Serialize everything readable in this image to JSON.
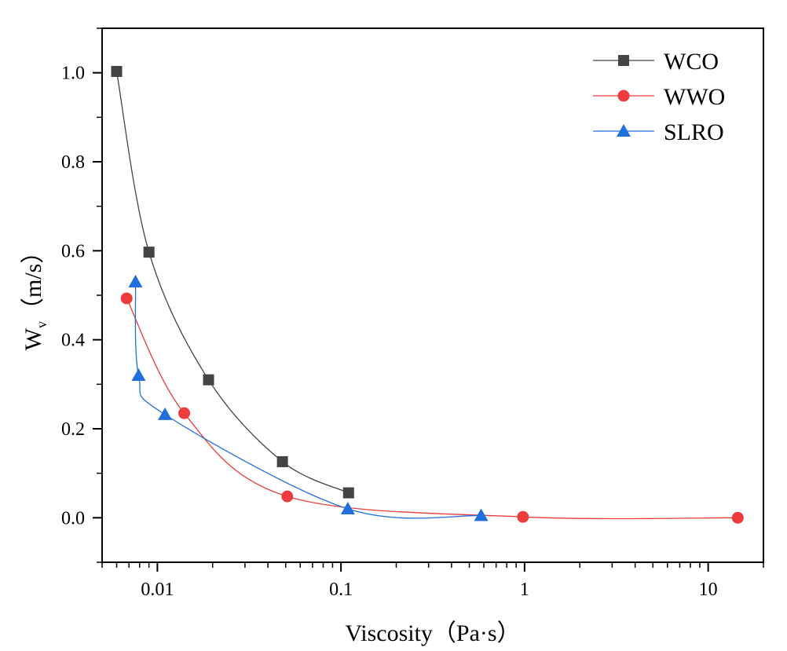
{
  "chart_data": {
    "type": "line",
    "xscale": "log",
    "xlabel": "Viscosity（Pa·s）",
    "ylabel": {
      "main": "W",
      "sub": "v",
      "unit": "（m/s）"
    },
    "xlim": [
      0.005,
      20
    ],
    "ylim": [
      -0.1,
      1.1
    ],
    "xticks": [
      0.01,
      0.1,
      1,
      10
    ],
    "xtick_labels": [
      "0.01",
      "0.1",
      "1",
      "10"
    ],
    "yticks": [
      0.0,
      0.2,
      0.4,
      0.6,
      0.8,
      1.0
    ],
    "ytick_labels": [
      "0.0",
      "0.2",
      "0.4",
      "0.6",
      "0.8",
      "1.0"
    ],
    "grid": false,
    "legend_position": "top-right",
    "series": [
      {
        "name": "WCO",
        "marker": "square",
        "color": "#444444",
        "x": [
          0.006,
          0.009,
          0.019,
          0.048,
          0.11
        ],
        "y": [
          1.003,
          0.597,
          0.31,
          0.126,
          0.056
        ]
      },
      {
        "name": "WWO",
        "marker": "circle",
        "color": "#ee3b3b",
        "x": [
          0.0068,
          0.014,
          0.051,
          0.98,
          14.5
        ],
        "y": [
          0.493,
          0.235,
          0.048,
          0.002,
          0.0
        ]
      },
      {
        "name": "SLRO",
        "marker": "triangle",
        "color": "#1f6fdc",
        "x": [
          0.0076,
          0.0079,
          0.011,
          0.109,
          0.58
        ],
        "y": [
          0.53,
          0.32,
          0.232,
          0.02,
          0.005
        ]
      }
    ]
  }
}
